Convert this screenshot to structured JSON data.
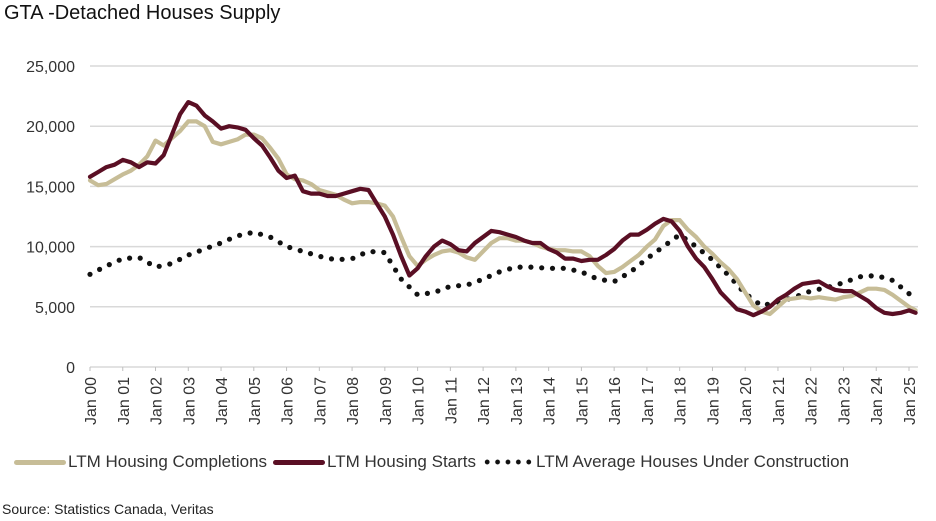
{
  "chart_data": {
    "type": "line",
    "title": "GTA -Detached Houses Supply",
    "xlabel": "",
    "ylabel": "",
    "ylim": [
      0,
      25000
    ],
    "xlim": [
      2000,
      2025.2
    ],
    "grid": true,
    "legend_position": "bottom",
    "y_ticks": [
      "0",
      "5,000",
      "10,000",
      "15,000",
      "20,000",
      "25,000"
    ],
    "y_tick_values": [
      0,
      5000,
      10000,
      15000,
      20000,
      25000
    ],
    "x_ticks": [
      "Jan 00",
      "Jan 01",
      "Jan 02",
      "Jan 03",
      "Jan 04",
      "Jan 05",
      "Jan 06",
      "Jan 07",
      "Jan 08",
      "Jan 09",
      "Jan 10",
      "Jan 11",
      "Jan 12",
      "Jan 13",
      "Jan 14",
      "Jan 15",
      "Jan 16",
      "Jan 17",
      "Jan 18",
      "Jan 19",
      "Jan 20",
      "Jan 21",
      "Jan 22",
      "Jan 23",
      "Jan 24",
      "Jan 25"
    ],
    "x_tick_values": [
      2000,
      2001,
      2002,
      2003,
      2004,
      2005,
      2006,
      2007,
      2008,
      2009,
      2010,
      2011,
      2012,
      2013,
      2014,
      2015,
      2016,
      2017,
      2018,
      2019,
      2020,
      2021,
      2022,
      2023,
      2024,
      2025
    ],
    "series": [
      {
        "name": "LTM Housing Completions",
        "color": "#c7bd97",
        "style": "solid",
        "x": [
          2000,
          2000.25,
          2000.5,
          2000.75,
          2001,
          2001.25,
          2001.5,
          2001.75,
          2002,
          2002.25,
          2002.5,
          2002.75,
          2003,
          2003.25,
          2003.5,
          2003.75,
          2004,
          2004.25,
          2004.5,
          2004.75,
          2005,
          2005.25,
          2005.5,
          2005.75,
          2006,
          2006.25,
          2006.5,
          2006.75,
          2007,
          2007.25,
          2007.5,
          2007.75,
          2008,
          2008.25,
          2008.5,
          2008.75,
          2009,
          2009.25,
          2009.5,
          2009.75,
          2010,
          2010.25,
          2010.5,
          2010.75,
          2011,
          2011.25,
          2011.5,
          2011.75,
          2012,
          2012.25,
          2012.5,
          2012.75,
          2013,
          2013.25,
          2013.5,
          2013.75,
          2014,
          2014.25,
          2014.5,
          2014.75,
          2015,
          2015.25,
          2015.5,
          2015.75,
          2016,
          2016.25,
          2016.5,
          2016.75,
          2017,
          2017.25,
          2017.5,
          2017.75,
          2018,
          2018.25,
          2018.5,
          2018.75,
          2019,
          2019.25,
          2019.5,
          2019.75,
          2020,
          2020.25,
          2020.5,
          2020.75,
          2021,
          2021.25,
          2021.5,
          2021.75,
          2022,
          2022.25,
          2022.5,
          2022.75,
          2023,
          2023.25,
          2023.5,
          2023.75,
          2024,
          2024.25,
          2024.5,
          2024.75,
          2025,
          2025.2
        ],
        "values": [
          15500,
          15100,
          15200,
          15600,
          16000,
          16300,
          16800,
          17500,
          18800,
          18400,
          19000,
          19600,
          20400,
          20400,
          20000,
          18700,
          18500,
          18700,
          18900,
          19300,
          19300,
          19000,
          18200,
          17300,
          16000,
          15600,
          15500,
          15200,
          14700,
          14500,
          14300,
          13900,
          13600,
          13700,
          13700,
          13600,
          13400,
          12500,
          10800,
          9200,
          8400,
          8900,
          9300,
          9600,
          9700,
          9500,
          9100,
          8900,
          9600,
          10300,
          10700,
          10700,
          10500,
          10500,
          10300,
          10000,
          9800,
          9700,
          9700,
          9600,
          9600,
          9200,
          8400,
          7800,
          7900,
          8300,
          8800,
          9300,
          10000,
          10600,
          11700,
          12200,
          12200,
          11400,
          10800,
          10000,
          9400,
          8700,
          8100,
          7300,
          6200,
          5100,
          4600,
          4400,
          5000,
          5600,
          5700,
          5800,
          5700,
          5800,
          5700,
          5600,
          5800,
          5900,
          6200,
          6500,
          6500,
          6400,
          6000,
          5500,
          5000,
          4700
        ],
        "_note": "values estimated from plot"
      },
      {
        "name": "LTM Housing Starts",
        "color": "#5a0f24",
        "style": "solid",
        "x": [
          2000,
          2000.25,
          2000.5,
          2000.75,
          2001,
          2001.25,
          2001.5,
          2001.75,
          2002,
          2002.25,
          2002.5,
          2002.75,
          2003,
          2003.25,
          2003.5,
          2003.75,
          2004,
          2004.25,
          2004.5,
          2004.75,
          2005,
          2005.25,
          2005.5,
          2005.75,
          2006,
          2006.25,
          2006.5,
          2006.75,
          2007,
          2007.25,
          2007.5,
          2007.75,
          2008,
          2008.25,
          2008.5,
          2008.75,
          2009,
          2009.25,
          2009.5,
          2009.75,
          2010,
          2010.25,
          2010.5,
          2010.75,
          2011,
          2011.25,
          2011.5,
          2011.75,
          2012,
          2012.25,
          2012.5,
          2012.75,
          2013,
          2013.25,
          2013.5,
          2013.75,
          2014,
          2014.25,
          2014.5,
          2014.75,
          2015,
          2015.25,
          2015.5,
          2015.75,
          2016,
          2016.25,
          2016.5,
          2016.75,
          2017,
          2017.25,
          2017.5,
          2017.75,
          2018,
          2018.25,
          2018.5,
          2018.75,
          2019,
          2019.25,
          2019.5,
          2019.75,
          2020,
          2020.25,
          2020.5,
          2020.75,
          2021,
          2021.25,
          2021.5,
          2021.75,
          2022,
          2022.25,
          2022.5,
          2022.75,
          2023,
          2023.25,
          2023.5,
          2023.75,
          2024,
          2024.25,
          2024.5,
          2024.75,
          2025,
          2025.2
        ],
        "values": [
          15800,
          16200,
          16600,
          16800,
          17200,
          17000,
          16600,
          17000,
          16900,
          17600,
          19300,
          21000,
          22000,
          21700,
          20900,
          20400,
          19800,
          20000,
          19900,
          19700,
          19000,
          18400,
          17400,
          16300,
          15700,
          15900,
          14600,
          14400,
          14400,
          14200,
          14200,
          14400,
          14600,
          14800,
          14700,
          13600,
          12500,
          11000,
          9200,
          7600,
          8200,
          9200,
          10000,
          10500,
          10200,
          9700,
          9600,
          10300,
          10800,
          11300,
          11200,
          11000,
          10800,
          10500,
          10300,
          10300,
          9800,
          9500,
          9000,
          9000,
          8800,
          8900,
          8900,
          9300,
          9800,
          10500,
          11000,
          11000,
          11400,
          11900,
          12300,
          12100,
          11300,
          10000,
          9000,
          8300,
          7300,
          6200,
          5500,
          4800,
          4600,
          4300,
          4600,
          5000,
          5600,
          6000,
          6500,
          6900,
          7000,
          7100,
          6700,
          6400,
          6300,
          6300,
          5900,
          5500,
          4900,
          4500,
          4400,
          4500,
          4700,
          4500
        ],
        "_note": "values estimated from plot"
      },
      {
        "name": "LTM Average Houses Under Construction",
        "color": "#111111",
        "style": "dotted",
        "x": [
          2000,
          2000.5,
          2001,
          2001.5,
          2002,
          2002.5,
          2003,
          2003.5,
          2004,
          2004.5,
          2005,
          2005.5,
          2006,
          2006.5,
          2007,
          2007.5,
          2008,
          2008.5,
          2009,
          2009.5,
          2010,
          2010.5,
          2011,
          2011.5,
          2012,
          2012.5,
          2013,
          2013.5,
          2014,
          2014.5,
          2015,
          2015.5,
          2016,
          2016.5,
          2017,
          2017.5,
          2018,
          2018.5,
          2019,
          2019.5,
          2020,
          2020.5,
          2021,
          2021.5,
          2022,
          2022.5,
          2023,
          2023.5,
          2024,
          2024.5,
          2025,
          2025.2
        ],
        "values": [
          7700,
          8400,
          9000,
          9100,
          8300,
          8600,
          9300,
          9800,
          10300,
          10900,
          11200,
          10800,
          10000,
          9600,
          9200,
          8900,
          9000,
          9600,
          9500,
          7300,
          6000,
          6200,
          6700,
          6800,
          7300,
          7900,
          8300,
          8300,
          8200,
          8200,
          7900,
          7300,
          7100,
          7900,
          9000,
          10000,
          11000,
          10000,
          8900,
          7600,
          6100,
          5100,
          5400,
          5800,
          6300,
          6600,
          7000,
          7500,
          7600,
          7200,
          6100,
          5500
        ],
        "_note": "values estimated from plot"
      }
    ],
    "source": "Source: Statistics Canada, Veritas"
  }
}
